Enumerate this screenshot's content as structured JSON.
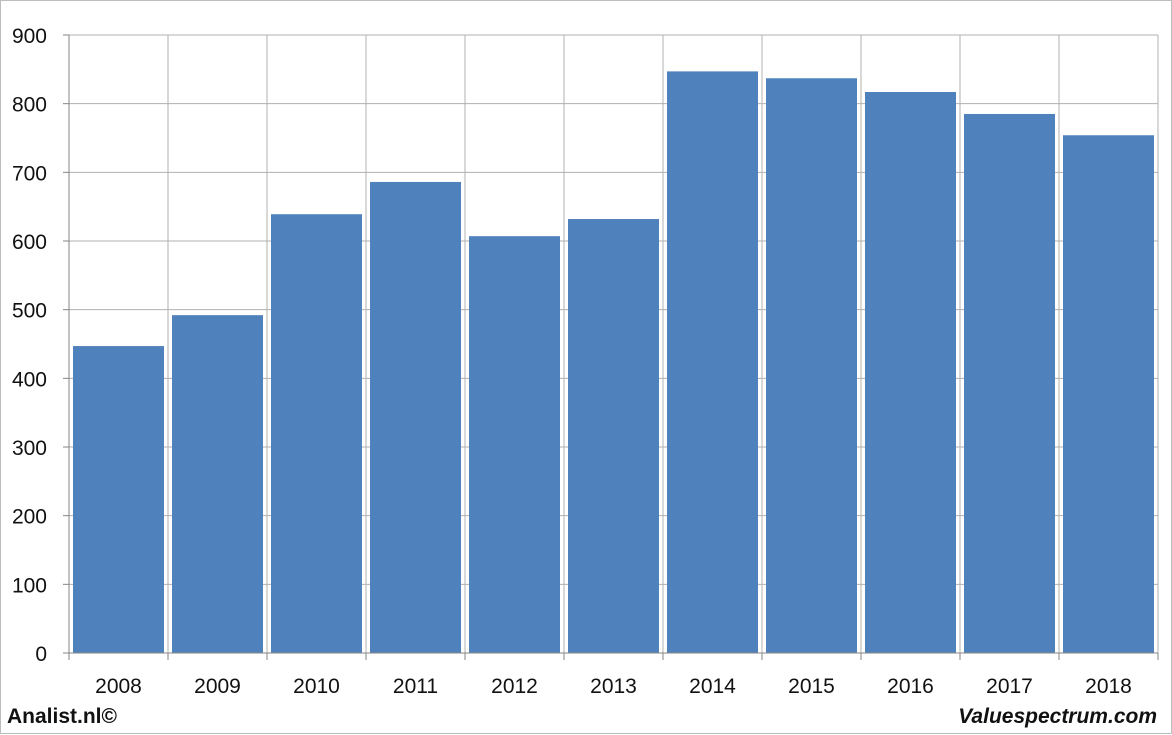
{
  "chart_data": {
    "type": "bar",
    "categories": [
      "2008",
      "2009",
      "2010",
      "2011",
      "2012",
      "2013",
      "2014",
      "2015",
      "2016",
      "2017",
      "2018"
    ],
    "values": [
      447,
      492,
      639,
      686,
      607,
      632,
      847,
      837,
      817,
      785,
      754
    ],
    "title": "",
    "xlabel": "",
    "ylabel": "",
    "ylim": [
      0,
      900
    ],
    "yticks": [
      0,
      100,
      200,
      300,
      400,
      500,
      600,
      700,
      800,
      900
    ],
    "grid": true,
    "bar_color": "#4f81bd",
    "grid_color": "#b0b0b0"
  },
  "footer": {
    "left": "Analist.nl©",
    "right": "Valuespectrum.com"
  }
}
